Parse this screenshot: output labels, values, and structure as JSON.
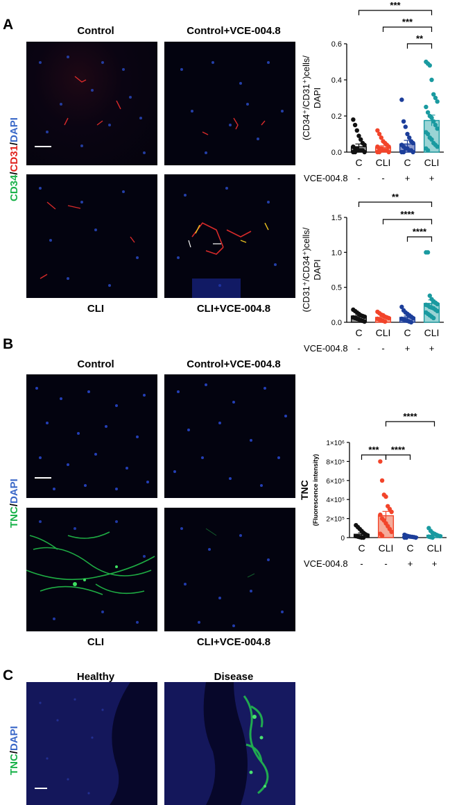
{
  "panels": {
    "A": {
      "letter": "A",
      "titles": {
        "top_left": "Control",
        "top_right": "Control+VCE-004.8",
        "bottom_left": "CLI",
        "bottom_right": "CLI+VCE-004.8"
      },
      "stain": {
        "part1": "CD34",
        "sep1": "/",
        "part2": "CD31",
        "sep2": "/",
        "part3": "DAPI"
      }
    },
    "B": {
      "letter": "B",
      "titles": {
        "top_left": "Control",
        "top_right": "Control+VCE-004.8",
        "bottom_left": "CLI",
        "bottom_right": "CLI+VCE-004.8"
      },
      "stain": {
        "part1": "TNC",
        "sep1": "/",
        "part2": "DAPI"
      }
    },
    "C": {
      "letter": "C",
      "titles": {
        "left": "Healthy",
        "right": "Disease"
      },
      "stain": {
        "part1": "TNC",
        "sep1": "/",
        "part2": "DAPI"
      }
    }
  },
  "colors": {
    "C": "#111111",
    "CLI": "#f2442a",
    "C_treated": "#1c3e9a",
    "CLI_treated": "#1a9aa0"
  },
  "chart_data": [
    {
      "type": "bar",
      "ylabel": "(CD34⁺/CD31⁺)cells/\nDAPI",
      "ylim": [
        0,
        0.6
      ],
      "yticks": [
        "0.0",
        "0.2",
        "0.4",
        "0.6"
      ],
      "categories": [
        "C",
        "CLI",
        "C",
        "CLI"
      ],
      "treatment_label": "VCE-004.8",
      "treatment": [
        "-",
        "-",
        "+",
        "+"
      ],
      "values": [
        0.03,
        0.025,
        0.045,
        0.175
      ],
      "errors": [
        0.015,
        0.01,
        0.02,
        0.03
      ],
      "significance": [
        {
          "from": 0,
          "to": 3,
          "label": "***"
        },
        {
          "from": 1,
          "to": 3,
          "label": "***"
        },
        {
          "from": 2,
          "to": 3,
          "label": "**"
        }
      ],
      "points": [
        [
          0.18,
          0.15,
          0.12,
          0.09,
          0.07,
          0.05,
          0.04,
          0.03,
          0.02,
          0.02,
          0.01,
          0.01,
          0.01,
          0.0,
          0.0,
          0.0
        ],
        [
          0.12,
          0.1,
          0.08,
          0.06,
          0.05,
          0.04,
          0.03,
          0.03,
          0.02,
          0.02,
          0.01,
          0.01,
          0.01,
          0.0,
          0.0,
          0.0
        ],
        [
          0.29,
          0.17,
          0.14,
          0.1,
          0.08,
          0.06,
          0.05,
          0.04,
          0.03,
          0.02,
          0.02,
          0.01,
          0.01,
          0.0,
          0.0,
          0.0
        ],
        [
          0.5,
          0.49,
          0.48,
          0.4,
          0.32,
          0.3,
          0.28,
          0.25,
          0.22,
          0.2,
          0.19,
          0.17,
          0.15,
          0.13,
          0.11,
          0.1,
          0.08,
          0.07,
          0.05,
          0.04,
          0.03,
          0.02,
          0.01
        ]
      ]
    },
    {
      "type": "bar",
      "ylabel": "(CD31⁺/CD34⁺)cells/\nDAPI",
      "ylim": [
        0,
        1.5
      ],
      "yticks": [
        "0.0",
        "0.5",
        "1.0",
        "1.5"
      ],
      "categories": [
        "C",
        "CLI",
        "C",
        "CLI"
      ],
      "treatment_label": "VCE-004.8",
      "treatment": [
        "-",
        "-",
        "+",
        "+"
      ],
      "values": [
        0.09,
        0.07,
        0.07,
        0.27
      ],
      "errors": [
        0.02,
        0.015,
        0.02,
        0.05
      ],
      "significance": [
        {
          "from": 0,
          "to": 3,
          "label": "**"
        },
        {
          "from": 1,
          "to": 3,
          "label": "****"
        },
        {
          "from": 2,
          "to": 3,
          "label": "****"
        }
      ],
      "points": [
        [
          0.18,
          0.16,
          0.14,
          0.12,
          0.1,
          0.09,
          0.08,
          0.07,
          0.06,
          0.05,
          0.04,
          0.03,
          0.02,
          0.01
        ],
        [
          0.15,
          0.13,
          0.11,
          0.1,
          0.08,
          0.07,
          0.06,
          0.05,
          0.04,
          0.03,
          0.02,
          0.01
        ],
        [
          0.22,
          0.17,
          0.14,
          0.12,
          0.1,
          0.08,
          0.06,
          0.05,
          0.04,
          0.03,
          0.02,
          0.01,
          0.0
        ],
        [
          1.0,
          1.0,
          0.38,
          0.33,
          0.3,
          0.28,
          0.26,
          0.25,
          0.24,
          0.22,
          0.21,
          0.2,
          0.18,
          0.16,
          0.14,
          0.12,
          0.1,
          0.08,
          0.06
        ]
      ]
    },
    {
      "type": "bar",
      "ylabel": "TNC",
      "ylabel_sub": "(Fluorescence intensity)",
      "ylim": [
        0,
        1000000
      ],
      "yticks": [
        "0",
        "2×10⁵",
        "4×10⁵",
        "6×10⁵",
        "8×10⁵",
        "1×10⁶"
      ],
      "categories": [
        "C",
        "CLI",
        "C",
        "CLI"
      ],
      "treatment_label": "VCE-004.8",
      "treatment": [
        "-",
        "-",
        "+",
        "+"
      ],
      "values": [
        35000,
        230000,
        10000,
        25000
      ],
      "errors": [
        15000,
        45000,
        5000,
        8000
      ],
      "significance": [
        {
          "from": 0,
          "to": 1,
          "label": "***"
        },
        {
          "from": 1,
          "to": 2,
          "label": "****"
        },
        {
          "from": 1,
          "to": 3,
          "label": "****"
        }
      ],
      "points": [
        [
          130000,
          110000,
          90000,
          70000,
          50000,
          35000,
          25000,
          15000,
          10000,
          5000,
          0,
          0
        ],
        [
          800000,
          600000,
          450000,
          430000,
          330000,
          300000,
          270000,
          240000,
          200000,
          180000,
          150000,
          120000,
          90000,
          60000,
          40000,
          20000
        ],
        [
          30000,
          20000,
          15000,
          10000,
          8000,
          5000,
          0,
          0,
          0
        ],
        [
          100000,
          70000,
          50000,
          40000,
          30000,
          20000,
          15000,
          10000,
          5000,
          0
        ]
      ]
    }
  ]
}
